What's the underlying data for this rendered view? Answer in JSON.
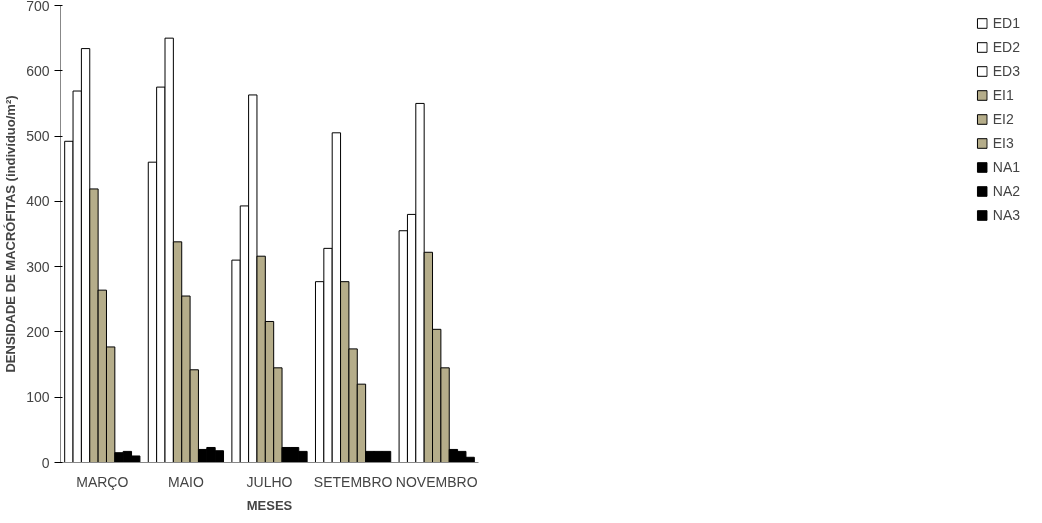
{
  "chart_data": {
    "type": "bar",
    "xlabel": "MESES",
    "ylabel": "DENSIDADE DE MACRÓFITAS (indivíduo/m²)",
    "categories": [
      "MARÇO",
      "MAIO",
      "JULHO",
      "SETEMBRO",
      "NOVEMBRO"
    ],
    "series": [
      {
        "name": "ED1",
        "color": "#ffffff",
        "values": [
          492,
          460,
          310,
          277,
          355
        ]
      },
      {
        "name": "ED2",
        "color": "#ffffff",
        "values": [
          569,
          575,
          393,
          328,
          380
        ]
      },
      {
        "name": "ED3",
        "color": "#ffffff",
        "values": [
          634,
          650,
          563,
          505,
          550
        ]
      },
      {
        "name": "EI1",
        "color": "#b5ad8a",
        "values": [
          419,
          338,
          316,
          277,
          322
        ]
      },
      {
        "name": "EI2",
        "color": "#b5ad8a",
        "values": [
          264,
          255,
          216,
          174,
          204
        ]
      },
      {
        "name": "EI3",
        "color": "#b5ad8a",
        "values": [
          177,
          142,
          145,
          120,
          145
        ]
      },
      {
        "name": "NA1",
        "color": "#000000",
        "values": [
          15,
          20,
          23,
          17,
          20
        ]
      },
      {
        "name": "NA2",
        "color": "#000000",
        "values": [
          17,
          23,
          23,
          17,
          17
        ]
      },
      {
        "name": "NA3",
        "color": "#000000",
        "values": [
          10,
          18,
          17,
          17,
          8
        ]
      }
    ],
    "ylim": [
      0,
      700
    ],
    "yticks": [
      0,
      100,
      200,
      300,
      400,
      500,
      600,
      700
    ],
    "grid": false,
    "legend": "right"
  }
}
